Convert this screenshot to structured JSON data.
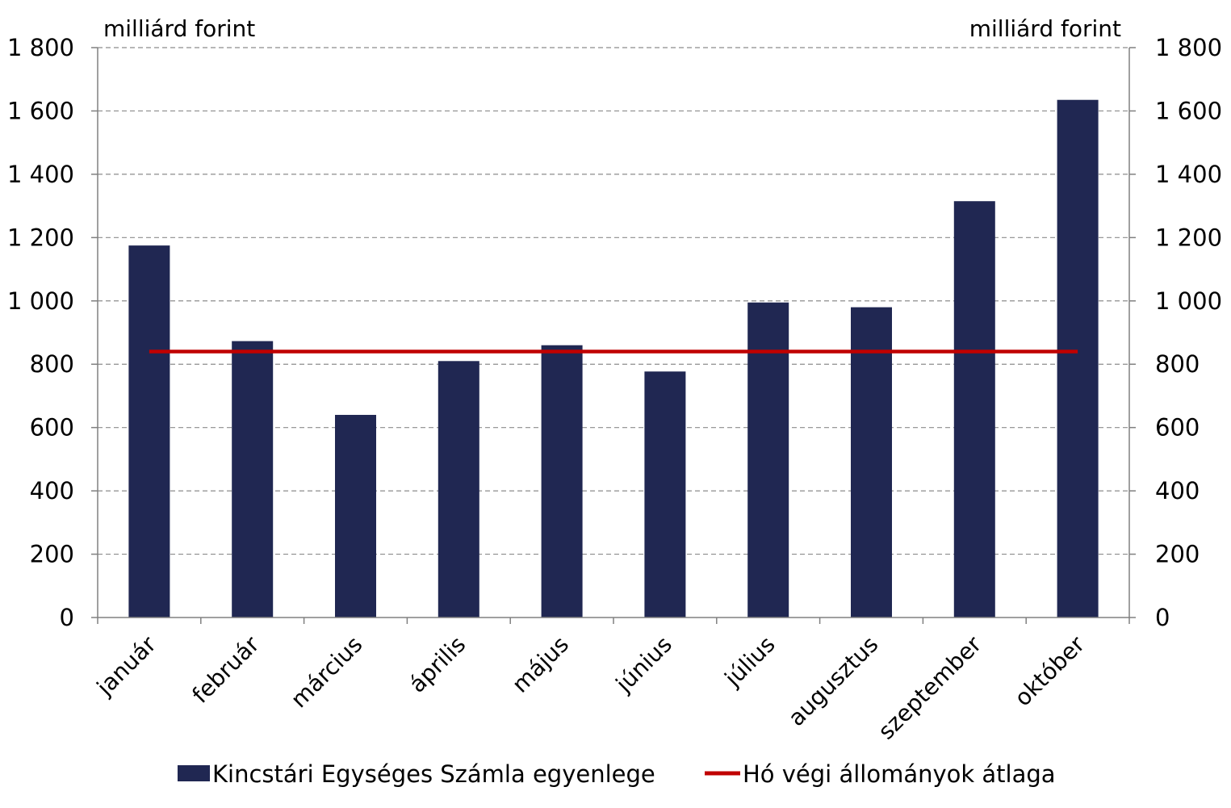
{
  "chart_data": {
    "type": "bar",
    "left_axis_unit": "milliárd forint",
    "right_axis_unit": "milliárd forint",
    "categories": [
      "január",
      "február",
      "március",
      "április",
      "május",
      "június",
      "július",
      "augusztus",
      "szeptember",
      "október"
    ],
    "series": [
      {
        "name": "Kincstári Egységes Számla egyenlege",
        "type": "bar",
        "color": "#202752",
        "values": [
          1175,
          873,
          640,
          810,
          860,
          777,
          995,
          980,
          1315,
          1635
        ]
      },
      {
        "name": "Hó végi állományok átlaga",
        "type": "line",
        "color": "#c00000",
        "values": [
          840,
          840,
          840,
          840,
          840,
          840,
          840,
          840,
          840,
          840
        ]
      }
    ],
    "ylim": [
      0,
      1800
    ],
    "y_ticks": [
      0,
      200,
      400,
      600,
      800,
      1000,
      1200,
      1400,
      1600,
      1800
    ],
    "y_tick_labels": [
      "0",
      "200",
      "400",
      "600",
      "800",
      "1 000",
      "1 200",
      "1 400",
      "1 600",
      "1 800"
    ],
    "grid": "horizontal dashed",
    "legend_position": "bottom"
  }
}
